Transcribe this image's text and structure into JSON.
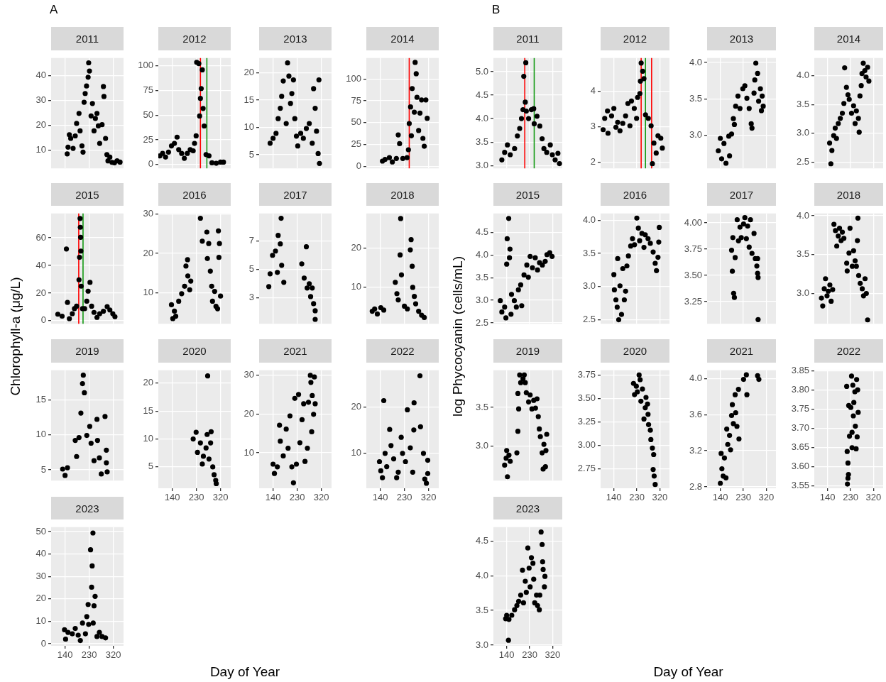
{
  "chart_data": [
    {
      "type": "other",
      "annotations": [
        "A"
      ],
      "xlabel": "Day of Year",
      "ylabel": "Chlorophyll-a (μg/L)"
    },
    {
      "type": "scatter",
      "title": "2011",
      "color": "#000000",
      "marker": "circle",
      "grid": true,
      "tick_labels": "y",
      "xlim": [
        88,
        358
      ],
      "xticks": [
        140,
        230,
        320
      ],
      "ylim": [
        2.8,
        47
      ],
      "yticks": [
        10,
        20,
        30,
        40
      ],
      "x": [
        148,
        151,
        156,
        161,
        170,
        178,
        183,
        192,
        196,
        203,
        207,
        211,
        215,
        220,
        226,
        228,
        231,
        237,
        242,
        248,
        253,
        259,
        264,
        269,
        278,
        283,
        285,
        291,
        296,
        300,
        307,
        315,
        324,
        334,
        345
      ],
      "values": [
        8.6,
        11.3,
        16.3,
        14.8,
        10.8,
        15.8,
        20.8,
        24.8,
        17.8,
        11.8,
        9.3,
        29.3,
        32.8,
        35.8,
        39.3,
        45.1,
        41.8,
        23.8,
        28.8,
        17.8,
        22.8,
        24.8,
        19.8,
        12.8,
        20.3,
        35.6,
        31.6,
        14.8,
        8.3,
        5.8,
        7.3,
        5.2,
        5.0,
        5.8,
        5.3
      ]
    },
    {
      "type": "scatter",
      "title": "2012",
      "color": "#000000",
      "marker": "circle",
      "grid": true,
      "tick_labels": "y",
      "xlim": [
        88,
        358
      ],
      "xticks": [
        140,
        230,
        320
      ],
      "ylim": [
        -3.8,
        107.6
      ],
      "yticks": [
        0,
        25,
        50,
        75,
        100
      ],
      "ref_lines": [
        {
          "axis": "x",
          "value": 245,
          "color": "#ff0000"
        },
        {
          "axis": "x",
          "value": 269,
          "color": "#119911"
        }
      ],
      "x": [
        94,
        104,
        115,
        126,
        137,
        148,
        158,
        164,
        175,
        185,
        196,
        207,
        218,
        223,
        229,
        231,
        239,
        242,
        245,
        248,
        252,
        255,
        259,
        266,
        277,
        288,
        304,
        320,
        331
      ],
      "values": [
        8.8,
        11.3,
        7.6,
        12.6,
        18.9,
        21.4,
        27.7,
        15.1,
        11.3,
        6.3,
        11.3,
        15.1,
        13.9,
        21.4,
        29.0,
        103.3,
        102.0,
        49.1,
        66.8,
        76.8,
        95.7,
        56.7,
        39.0,
        10.1,
        8.8,
        1.8,
        1.3,
        2.5,
        2.5
      ]
    },
    {
      "type": "scatter",
      "title": "2013",
      "color": "#000000",
      "marker": "circle",
      "grid": true,
      "tick_labels": "y",
      "xlim": [
        88,
        358
      ],
      "xticks": [
        140,
        230,
        320
      ],
      "ylim": [
        2.5,
        22.7
      ],
      "yticks": [
        5,
        10,
        15,
        20
      ],
      "x": [
        129,
        140,
        151,
        159,
        167,
        172,
        178,
        189,
        194,
        199,
        205,
        210,
        216,
        221,
        227,
        232,
        243,
        253,
        264,
        275,
        286,
        291,
        297,
        302,
        308,
        311,
        313
      ],
      "values": [
        7.1,
        8.0,
        8.9,
        11.6,
        13.5,
        15.7,
        18.5,
        10.7,
        21.8,
        19.4,
        14.4,
        16.2,
        18.7,
        11.6,
        8.4,
        6.6,
        8.9,
        8.0,
        9.8,
        10.7,
        7.1,
        17.1,
        13.5,
        9.3,
        5.2,
        18.7,
        3.4
      ]
    },
    {
      "type": "scatter",
      "title": "2014",
      "color": "#000000",
      "marker": "circle",
      "grid": true,
      "tick_labels": "y",
      "xlim": [
        88,
        358
      ],
      "xticks": [
        140,
        230,
        320
      ],
      "ylim": [
        -2.3,
        124
      ],
      "yticks": [
        0,
        25,
        50,
        75,
        100
      ],
      "ref_lines": [
        {
          "axis": "x",
          "value": 248,
          "color": "#ff0000"
        }
      ],
      "x": [
        148,
        158,
        174,
        185,
        200,
        207,
        212,
        224,
        240,
        245,
        248,
        253,
        256,
        259,
        267,
        270,
        274,
        277,
        283,
        288,
        294,
        299,
        304,
        310,
        315
      ],
      "values": [
        6,
        8,
        10,
        5,
        9,
        36,
        26,
        9,
        10,
        19,
        49,
        68,
        35,
        89,
        62,
        119,
        106,
        79,
        41,
        61,
        76,
        32,
        23,
        76,
        55
      ]
    },
    {
      "type": "scatter",
      "title": "2015",
      "color": "#000000",
      "marker": "circle",
      "grid": true,
      "tick_labels": "y",
      "xlim": [
        88,
        358
      ],
      "xticks": [
        140,
        230,
        320
      ],
      "ylim": [
        -2.2,
        77.6
      ],
      "yticks": [
        0,
        20,
        40,
        60
      ],
      "ref_lines": [
        {
          "axis": "x",
          "value": 191,
          "color": "#ff0000"
        },
        {
          "axis": "x",
          "value": 207,
          "color": "#119911"
        }
      ],
      "x": [
        113,
        129,
        145,
        149,
        156,
        167,
        175,
        183,
        192,
        194,
        196,
        197,
        198,
        199,
        200,
        205,
        213,
        221,
        226,
        233,
        239,
        248,
        259,
        269,
        283,
        297,
        307,
        318,
        326
      ],
      "values": [
        4.7,
        3.3,
        51.9,
        13.2,
        1.5,
        5.1,
        8.7,
        10.5,
        29.6,
        45.9,
        74.0,
        67.6,
        60.4,
        50.4,
        25.0,
        8.7,
        8.7,
        14.1,
        21.4,
        27.7,
        10.5,
        6.0,
        2.4,
        5.1,
        6.9,
        10.2,
        7.8,
        5.1,
        2.9
      ]
    },
    {
      "type": "scatter",
      "title": "2016",
      "color": "#000000",
      "marker": "circle",
      "grid": true,
      "tick_labels": "y",
      "xlim": [
        88,
        358
      ],
      "xticks": [
        140,
        230,
        320
      ],
      "ylim": [
        2.2,
        30.1
      ],
      "yticks": [
        10,
        20,
        30
      ],
      "x": [
        137,
        142,
        148,
        153,
        164,
        175,
        186,
        191,
        197,
        198,
        205,
        209,
        245,
        252,
        269,
        271,
        276,
        282,
        287,
        290,
        298,
        303,
        309,
        312,
        314,
        316,
        320
      ],
      "values": [
        7.0,
        3.5,
        5.4,
        4.1,
        7.9,
        9.8,
        11.7,
        16.8,
        18.4,
        14.3,
        10.8,
        13.0,
        28.9,
        23.1,
        25.4,
        18.7,
        22.5,
        15.5,
        11.7,
        7.9,
        10.4,
        6.6,
        6.0,
        25.7,
        19.0,
        22.5,
        9.2
      ]
    },
    {
      "type": "scatter",
      "title": "2017",
      "color": "#000000",
      "marker": "circle",
      "grid": true,
      "tick_labels": "y",
      "xlim": [
        88,
        358
      ],
      "xticks": [
        140,
        230,
        320
      ],
      "ylim": [
        1.19,
        8.94
      ],
      "yticks": [
        3,
        5,
        7
      ],
      "x": [
        124,
        129,
        138,
        149,
        156,
        159,
        167,
        170,
        172,
        180,
        247,
        256,
        264,
        267,
        275,
        280,
        286,
        291,
        297,
        297
      ],
      "values": [
        3.8,
        4.7,
        6.0,
        6.3,
        4.8,
        7.4,
        6.8,
        8.6,
        5.3,
        4.1,
        5.4,
        4.4,
        6.6,
        3.7,
        4.0,
        3.1,
        3.7,
        2.6,
        2.1,
        1.5
      ]
    },
    {
      "type": "scatter",
      "title": "2018",
      "color": "#000000",
      "marker": "circle",
      "grid": true,
      "tick_labels": "y",
      "xlim": [
        88,
        358
      ],
      "xticks": [
        140,
        230,
        320
      ],
      "ylim": [
        0.6,
        28.8
      ],
      "yticks": [
        10,
        20
      ],
      "x": [
        110,
        119,
        129,
        142,
        153,
        196,
        202,
        207,
        214,
        216,
        219,
        230,
        241,
        252,
        255,
        259,
        261,
        267,
        272,
        283,
        294,
        304
      ],
      "values": [
        3.8,
        4.4,
        3.1,
        4.7,
        4.1,
        11.2,
        8.3,
        6.7,
        18.2,
        27.5,
        13.1,
        5.1,
        4.4,
        19.5,
        22.1,
        15.3,
        9.9,
        7.6,
        5.7,
        3.8,
        2.8,
        2.2
      ]
    },
    {
      "type": "scatter",
      "title": "2019",
      "color": "#000000",
      "marker": "circle",
      "grid": true,
      "tick_labels": "y",
      "xlim": [
        88,
        358
      ],
      "xticks": [
        140,
        230,
        320
      ],
      "ylim": [
        3.46,
        19.2
      ],
      "yticks": [
        5,
        10,
        15
      ],
      "x": [
        131,
        140,
        149,
        178,
        183,
        192,
        199,
        205,
        208,
        212,
        221,
        232,
        237,
        248,
        259,
        261,
        268,
        275,
        289,
        294,
        297,
        294
      ],
      "values": [
        5.1,
        4.2,
        5.3,
        9.2,
        6.9,
        9.6,
        13.1,
        17.3,
        18.5,
        16.0,
        9.9,
        11.2,
        8.8,
        6.3,
        12.2,
        9.2,
        6.7,
        4.4,
        12.6,
        7.8,
        4.7,
        6.0
      ]
    },
    {
      "type": "scatter",
      "title": "2020",
      "color": "#000000",
      "marker": "circle",
      "grid": true,
      "xlim": [
        88,
        358
      ],
      "xticks": [
        140,
        230,
        320
      ],
      "ylim": [
        1.17,
        22.3
      ],
      "yticks": [
        5,
        10,
        15,
        20
      ],
      "x": [
        218,
        229,
        234,
        245,
        252,
        256,
        266,
        270,
        272,
        277,
        283,
        285,
        291,
        296,
        302,
        304
      ],
      "values": [
        10.0,
        11.2,
        7.6,
        9.3,
        5.5,
        6.9,
        8.4,
        10.8,
        21.3,
        6.4,
        9.3,
        11.3,
        5.0,
        3.6,
        2.6,
        2.0
      ]
    },
    {
      "type": "scatter",
      "title": "2021",
      "color": "#000000",
      "marker": "circle",
      "grid": true,
      "xlim": [
        88,
        358
      ],
      "xticks": [
        140,
        230,
        320
      ],
      "ylim": [
        0.9,
        31.2
      ],
      "yticks": [
        10,
        20,
        30
      ],
      "x": [
        140,
        145,
        156,
        164,
        167,
        178,
        189,
        196,
        203,
        210,
        216,
        221,
        227,
        235,
        240,
        248,
        254,
        259,
        268,
        272,
        279,
        281,
        284,
        286,
        291,
        294,
        297
      ],
      "values": [
        7.1,
        4.7,
        6.4,
        17.1,
        13.0,
        9.2,
        16.1,
        11.2,
        19.5,
        6.4,
        2.3,
        24.0,
        7.1,
        25.0,
        12.6,
        18.5,
        22.6,
        7.8,
        11.2,
        23.0,
        29.9,
        28.1,
        15.4,
        24.7,
        19.9,
        29.5,
        22.6
      ]
    },
    {
      "type": "scatter",
      "title": "2022",
      "color": "#000000",
      "marker": "circle",
      "grid": true,
      "xlim": [
        88,
        358
      ],
      "xticks": [
        140,
        230,
        320
      ],
      "ylim": [
        2.3,
        28.0
      ],
      "yticks": [
        10,
        20
      ],
      "x": [
        137,
        142,
        148,
        153,
        158,
        164,
        175,
        180,
        190,
        201,
        207,
        218,
        223,
        234,
        241,
        252,
        261,
        265,
        266,
        290,
        288,
        301,
        306,
        312,
        317,
        317
      ],
      "values": [
        8.1,
        6.1,
        4.6,
        21.4,
        9.9,
        7.0,
        15.1,
        11.6,
        8.7,
        4.6,
        5.8,
        13.4,
        9.9,
        8.1,
        19.4,
        11.1,
        5.8,
        15.0,
        20.9,
        15.7,
        26.8,
        9.9,
        4.3,
        3.4,
        5.5,
        8.4
      ]
    },
    {
      "type": "scatter",
      "title": "2023",
      "color": "#000000",
      "marker": "circle",
      "grid": true,
      "xlim": [
        88,
        358
      ],
      "xticks": [
        140,
        230,
        320
      ],
      "ylim": [
        -0.95,
        52
      ],
      "yticks": [
        0,
        10,
        20,
        30,
        40,
        50
      ],
      "x": [
        138,
        142,
        151,
        167,
        178,
        189,
        197,
        205,
        216,
        221,
        226,
        228,
        235,
        239,
        241,
        244,
        245,
        248,
        252,
        259,
        268,
        278,
        291
      ],
      "values": [
        6.2,
        2.0,
        5.0,
        4.4,
        6.8,
        3.8,
        1.4,
        9.2,
        4.4,
        12.1,
        17.5,
        8.6,
        41.9,
        25.2,
        34.7,
        49.4,
        9.2,
        16.9,
        21.1,
        3.2,
        5.0,
        3.2,
        2.6
      ]
    },
    {
      "type": "other",
      "annotations": [
        "B"
      ],
      "xlabel": "Day of Year",
      "ylabel": "log Phycocyanin (cells/mL)"
    },
    {
      "type": "scatter",
      "title": "2011",
      "color": "#000000",
      "marker": "circle",
      "grid": true,
      "tick_labels": "y",
      "xlim": [
        88,
        358
      ],
      "xticks": [
        140,
        230,
        320
      ],
      "ylim": [
        2.94,
        5.29
      ],
      "yticks": [
        {
          "value": 3,
          "label": "3.0"
        },
        {
          "value": 3.5,
          "label": "3.5"
        },
        {
          "value": 4,
          "label": "4.0"
        },
        {
          "value": 4.5,
          "label": "4.5"
        },
        {
          "value": 5,
          "label": "5.0"
        }
      ],
      "ref_lines": [
        {
          "axis": "x",
          "value": 211,
          "color": "#ff0000"
        },
        {
          "axis": "x",
          "value": 248,
          "color": "#119911"
        }
      ],
      "x": [
        121,
        132,
        143,
        154,
        171,
        182,
        191,
        198,
        204,
        207,
        215,
        213,
        217,
        226,
        237,
        246,
        248,
        259,
        270,
        279,
        286,
        297,
        311,
        319,
        330,
        341,
        347
      ],
      "values": [
        3.12,
        3.28,
        3.44,
        3.23,
        3.36,
        3.63,
        3.79,
        4.0,
        4.19,
        4.9,
        5.19,
        4.35,
        4.16,
        4.0,
        4.19,
        4.21,
        3.89,
        4.05,
        3.84,
        3.57,
        3.36,
        3.28,
        3.44,
        3.23,
        3.12,
        3.26,
        3.04
      ]
    },
    {
      "type": "scatter",
      "title": "2012",
      "color": "#000000",
      "marker": "circle",
      "grid": true,
      "tick_labels": "y",
      "xlim": [
        88,
        358
      ],
      "xticks": [
        140,
        230,
        320
      ],
      "ylim": [
        1.82,
        4.93
      ],
      "yticks": [
        2,
        3,
        4
      ],
      "ref_lines": [
        {
          "axis": "x",
          "value": 247,
          "color": "#ff0000"
        },
        {
          "axis": "x",
          "value": 264,
          "color": "#119911"
        },
        {
          "axis": "x",
          "value": 288,
          "color": "#ff0000"
        }
      ],
      "x": [
        98,
        104,
        115,
        117,
        131,
        140,
        148,
        155,
        164,
        175,
        186,
        195,
        203,
        209,
        220,
        229,
        233,
        242,
        244,
        247,
        253,
        258,
        264,
        275,
        286,
        291,
        297,
        306,
        313,
        324,
        330
      ],
      "values": [
        2.91,
        3.23,
        3.44,
        2.81,
        3.3,
        3.51,
        2.98,
        3.12,
        2.88,
        3.09,
        3.3,
        3.65,
        3.02,
        3.72,
        3.51,
        3.23,
        3.82,
        3.93,
        4.28,
        4.79,
        4.56,
        4.35,
        3.33,
        3.23,
        3.02,
        1.95,
        2.53,
        2.25,
        2.74,
        2.67,
        2.39
      ]
    },
    {
      "type": "scatter",
      "title": "2013",
      "color": "#000000",
      "marker": "circle",
      "grid": true,
      "tick_labels": "y",
      "xlim": [
        88,
        358
      ],
      "xticks": [
        140,
        230,
        320
      ],
      "ylim": [
        2.55,
        4.06
      ],
      "yticks": [
        {
          "value": 3,
          "label": "3.0"
        },
        {
          "value": 3.5,
          "label": "3.5"
        },
        {
          "value": 4,
          "label": "4.0"
        }
      ],
      "x": [
        132,
        140,
        145,
        154,
        162,
        173,
        176,
        184,
        191,
        195,
        200,
        209,
        217,
        228,
        236,
        244,
        253,
        261,
        264,
        272,
        275,
        279,
        286,
        290,
        297,
        301,
        304,
        308
      ],
      "values": [
        2.79,
        2.96,
        2.68,
        2.89,
        2.62,
        2.99,
        2.72,
        3.02,
        3.23,
        3.15,
        3.4,
        3.54,
        3.37,
        3.64,
        3.68,
        3.51,
        3.37,
        3.16,
        3.1,
        3.58,
        3.76,
        3.99,
        3.85,
        3.47,
        3.64,
        3.34,
        3.54,
        3.4
      ]
    },
    {
      "type": "scatter",
      "title": "2014",
      "color": "#000000",
      "marker": "circle",
      "grid": true,
      "tick_labels": "y",
      "xlim": [
        88,
        358
      ],
      "xticks": [
        140,
        230,
        320
      ],
      "ylim": [
        2.39,
        4.31
      ],
      "yticks": [
        {
          "value": 2.5,
          "label": "2.5"
        },
        {
          "value": 3,
          "label": "3.0"
        },
        {
          "value": 3.5,
          "label": "3.5"
        },
        {
          "value": 4,
          "label": "4.0"
        }
      ],
      "x": [
        148,
        153,
        157,
        164,
        170,
        175,
        182,
        190,
        198,
        204,
        207,
        214,
        220,
        225,
        234,
        242,
        248,
        253,
        261,
        264,
        267,
        272,
        275,
        280,
        286,
        291,
        297,
        302
      ],
      "values": [
        2.83,
        2.47,
        2.7,
        2.96,
        3.09,
        2.91,
        3.17,
        3.26,
        3.35,
        3.52,
        4.14,
        3.8,
        3.67,
        3.59,
        3.35,
        3.48,
        3.17,
        3.39,
        3.26,
        3.02,
        3.65,
        3.83,
        4.04,
        4.22,
        4.09,
        3.98,
        4.15,
        3.91
      ]
    },
    {
      "type": "scatter",
      "title": "2015",
      "color": "#000000",
      "marker": "circle",
      "grid": true,
      "tick_labels": "y",
      "xlim": [
        88,
        358
      ],
      "xticks": [
        140,
        230,
        320
      ],
      "ylim": [
        2.48,
        4.92
      ],
      "yticks": [
        {
          "value": 2.5,
          "label": "2.5"
        },
        {
          "value": 3,
          "label": "3.0"
        },
        {
          "value": 3.5,
          "label": "3.5"
        },
        {
          "value": 4,
          "label": "4.0"
        },
        {
          "value": 4.5,
          "label": "4.5"
        }
      ],
      "x": [
        115,
        121,
        132,
        137,
        140,
        142,
        148,
        151,
        153,
        157,
        159,
        170,
        178,
        186,
        195,
        199,
        208,
        219,
        225,
        232,
        241,
        252,
        261,
        269,
        280,
        291,
        298,
        309,
        318
      ],
      "values": [
        2.99,
        2.74,
        2.85,
        2.61,
        3.8,
        4.36,
        4.81,
        3.94,
        4.13,
        2.69,
        3.13,
        2.99,
        2.85,
        3.23,
        3.34,
        2.88,
        3.56,
        3.78,
        3.51,
        3.97,
        3.72,
        3.94,
        3.67,
        3.83,
        3.78,
        3.86,
        4.01,
        4.05,
        3.97
      ]
    },
    {
      "type": "scatter",
      "title": "2016",
      "color": "#000000",
      "marker": "circle",
      "grid": true,
      "tick_labels": "y",
      "xlim": [
        88,
        358
      ],
      "xticks": [
        140,
        230,
        320
      ],
      "ylim": [
        2.44,
        4.1
      ],
      "yticks": [
        {
          "value": 2.5,
          "label": "2.5"
        },
        {
          "value": 3,
          "label": "3.0"
        },
        {
          "value": 3.5,
          "label": "3.5"
        },
        {
          "value": 4,
          "label": "4.0"
        }
      ],
      "x": [
        140,
        142,
        148,
        153,
        155,
        159,
        164,
        170,
        175,
        181,
        186,
        191,
        197,
        206,
        213,
        221,
        230,
        236,
        241,
        250,
        258,
        263,
        274,
        283,
        294,
        302,
        307,
        313,
        316,
        318
      ],
      "values": [
        3.18,
        2.95,
        2.8,
        2.69,
        3.42,
        2.5,
        3.01,
        2.58,
        3.27,
        2.8,
        2.93,
        3.31,
        3.46,
        3.61,
        3.72,
        3.63,
        4.03,
        3.88,
        3.69,
        3.8,
        3.59,
        3.78,
        3.72,
        3.65,
        3.52,
        3.35,
        3.24,
        3.44,
        3.67,
        3.89
      ]
    },
    {
      "type": "scatter",
      "title": "2017",
      "color": "#000000",
      "marker": "circle",
      "grid": true,
      "tick_labels": "y",
      "xlim": [
        88,
        358
      ],
      "xticks": [
        140,
        230,
        320
      ],
      "ylim": [
        3.04,
        4.09
      ],
      "yticks": [
        {
          "value": 3.25,
          "label": "3.25"
        },
        {
          "value": 3.5,
          "label": "3.50"
        },
        {
          "value": 3.75,
          "label": "3.75"
        },
        {
          "value": 4,
          "label": "4.00"
        }
      ],
      "x": [
        184,
        187,
        192,
        195,
        189,
        198,
        206,
        211,
        217,
        222,
        231,
        236,
        242,
        247,
        253,
        258,
        264,
        272,
        277,
        283,
        286,
        288,
        286,
        288
      ],
      "values": [
        3.74,
        3.54,
        3.33,
        3.29,
        3.86,
        3.67,
        4.03,
        3.83,
        3.96,
        3.86,
        3.99,
        4.05,
        3.85,
        3.97,
        3.77,
        4.03,
        3.71,
        3.9,
        3.66,
        3.59,
        3.52,
        3.48,
        3.66,
        3.08
      ]
    },
    {
      "type": "scatter",
      "title": "2018",
      "color": "#000000",
      "marker": "circle",
      "grid": true,
      "tick_labels": "y",
      "xlim": [
        88,
        358
      ],
      "xticks": [
        140,
        230,
        320
      ],
      "ylim": [
        2.61,
        4.03
      ],
      "yticks": [
        {
          "value": 3,
          "label": "3.0"
        },
        {
          "value": 3.5,
          "label": "3.5"
        },
        {
          "value": 4,
          "label": "4.0"
        }
      ],
      "x": [
        116,
        121,
        127,
        132,
        138,
        143,
        149,
        154,
        160,
        165,
        171,
        176,
        182,
        187,
        193,
        198,
        204,
        215,
        217,
        224,
        228,
        237,
        242,
        248,
        253,
        259,
        257,
        262,
        268,
        276,
        281,
        287,
        292,
        297
      ],
      "values": [
        2.94,
        2.84,
        3.06,
        3.19,
        2.97,
        3.03,
        3.11,
        2.9,
        3.05,
        3.89,
        3.81,
        3.61,
        3.74,
        3.84,
        3.68,
        3.79,
        3.71,
        3.39,
        3.29,
        3.52,
        3.84,
        3.35,
        3.55,
        3.42,
        3.35,
        3.97,
        3.68,
        3.23,
        3.13,
        3.06,
        2.97,
        3.19,
        3.0,
        2.66
      ]
    },
    {
      "type": "scatter",
      "title": "2019",
      "color": "#000000",
      "marker": "circle",
      "grid": true,
      "tick_labels": "y",
      "xlim": [
        88,
        358
      ],
      "xticks": [
        140,
        230,
        320
      ],
      "ylim": [
        2.55,
        3.98
      ],
      "yticks": [
        {
          "value": 3,
          "label": "3.0"
        },
        {
          "value": 3.5,
          "label": "3.5"
        }
      ],
      "x": [
        132,
        138,
        140,
        143,
        149,
        154,
        180,
        184,
        187,
        184,
        191,
        195,
        204,
        209,
        213,
        217,
        226,
        232,
        239,
        246,
        253,
        259,
        264,
        268,
        272,
        279,
        283,
        286,
        292,
        294,
        297
      ],
      "values": [
        2.75,
        2.84,
        2.94,
        2.6,
        2.88,
        2.8,
        2.91,
        3.19,
        3.48,
        3.68,
        3.92,
        3.82,
        3.87,
        3.92,
        3.82,
        3.69,
        3.57,
        3.66,
        3.48,
        3.59,
        3.49,
        3.61,
        3.38,
        3.22,
        3.12,
        2.91,
        2.7,
        3.02,
        2.73,
        2.94,
        3.15
      ]
    },
    {
      "type": "scatter",
      "title": "2020",
      "color": "#000000",
      "marker": "circle",
      "grid": true,
      "xlim": [
        88,
        358
      ],
      "xticks": [
        140,
        230,
        320
      ],
      "ylim": [
        2.54,
        3.8
      ],
      "yticks": [
        {
          "value": 2.75,
          "label": "2.75"
        },
        {
          "value": 3,
          "label": "3.00"
        },
        {
          "value": 3.25,
          "label": "3.25"
        },
        {
          "value": 3.5,
          "label": "3.50"
        },
        {
          "value": 3.75,
          "label": "3.75"
        }
      ],
      "x": [
        217,
        221,
        228,
        232,
        239,
        243,
        246,
        252,
        258,
        263,
        266,
        272,
        274,
        276,
        283,
        285,
        291,
        296,
        294,
        298,
        302
      ],
      "values": [
        3.66,
        3.54,
        3.63,
        3.57,
        3.75,
        3.7,
        3.47,
        3.6,
        3.28,
        3.4,
        3.51,
        3.44,
        3.33,
        3.22,
        3.16,
        3.06,
        2.97,
        2.9,
        2.74,
        2.67,
        2.58
      ]
    },
    {
      "type": "scatter",
      "title": "2021",
      "color": "#000000",
      "marker": "circle",
      "grid": true,
      "xlim": [
        88,
        358
      ],
      "xticks": [
        140,
        230,
        320
      ],
      "ylim": [
        2.785,
        4.09
      ],
      "yticks": [
        {
          "value": 2.8,
          "label": "2.8"
        },
        {
          "value": 3.2,
          "label": "3.2"
        },
        {
          "value": 3.6,
          "label": "3.6"
        },
        {
          "value": 4,
          "label": "4.0"
        }
      ],
      "x": [
        140,
        143,
        146,
        151,
        156,
        162,
        165,
        169,
        176,
        180,
        184,
        187,
        191,
        198,
        200,
        205,
        211,
        213,
        231,
        242,
        244,
        286,
        291
      ],
      "values": [
        2.84,
        3.17,
        3.0,
        2.92,
        3.12,
        2.9,
        3.44,
        3.27,
        3.37,
        3.21,
        3.59,
        3.71,
        3.5,
        3.82,
        3.62,
        3.47,
        3.88,
        3.33,
        3.99,
        4.04,
        3.82,
        4.03,
        3.99
      ]
    },
    {
      "type": "scatter",
      "title": "2022",
      "color": "#000000",
      "marker": "circle",
      "grid": true,
      "xlim": [
        88,
        358
      ],
      "xticks": [
        140,
        230,
        320
      ],
      "ylim": [
        3.544,
        3.852
      ],
      "yticks": [
        {
          "value": 3.55,
          "label": "3.55"
        },
        {
          "value": 3.6,
          "label": "3.60"
        },
        {
          "value": 3.65,
          "label": "3.65"
        },
        {
          "value": 3.7,
          "label": "3.70"
        },
        {
          "value": 3.75,
          "label": "3.75"
        },
        {
          "value": 3.8,
          "label": "3.80"
        },
        {
          "value": 3.85,
          "label": "3.85"
        }
      ],
      "x": [
        215,
        217,
        220,
        222,
        220,
        218,
        223,
        226,
        231,
        234,
        236,
        236,
        239,
        241,
        243,
        247,
        249,
        252,
        254,
        256,
        258,
        260
      ],
      "values": [
        3.81,
        3.64,
        3.61,
        3.58,
        3.57,
        3.555,
        3.76,
        3.68,
        3.755,
        3.837,
        3.69,
        3.65,
        3.813,
        3.733,
        3.768,
        3.796,
        3.706,
        3.647,
        3.828,
        3.678,
        3.801,
        3.742
      ]
    },
    {
      "type": "scatter",
      "title": "2023",
      "color": "#000000",
      "marker": "circle",
      "grid": true,
      "xlim": [
        88,
        358
      ],
      "xticks": [
        140,
        230,
        320
      ],
      "ylim": [
        2.99,
        4.7
      ],
      "yticks": [
        {
          "value": 3,
          "label": "3.0"
        },
        {
          "value": 3.5,
          "label": "3.5"
        },
        {
          "value": 4,
          "label": "4.0"
        },
        {
          "value": 4.5,
          "label": "4.5"
        }
      ],
      "x": [
        136,
        140,
        147,
        149,
        160,
        171,
        180,
        187,
        195,
        202,
        206,
        213,
        217,
        223,
        228,
        232,
        237,
        243,
        246,
        250,
        257,
        261,
        268,
        270,
        275,
        279,
        281,
        283,
        288,
        290
      ],
      "values": [
        3.38,
        3.43,
        3.07,
        3.37,
        3.43,
        3.51,
        3.57,
        3.63,
        3.72,
        4.08,
        3.61,
        3.92,
        3.76,
        4.4,
        4.11,
        3.84,
        4.26,
        4.18,
        3.95,
        3.61,
        3.72,
        3.57,
        3.51,
        3.72,
        4.63,
        4.45,
        4.2,
        4.09,
        3.84,
        3.99
      ]
    }
  ]
}
